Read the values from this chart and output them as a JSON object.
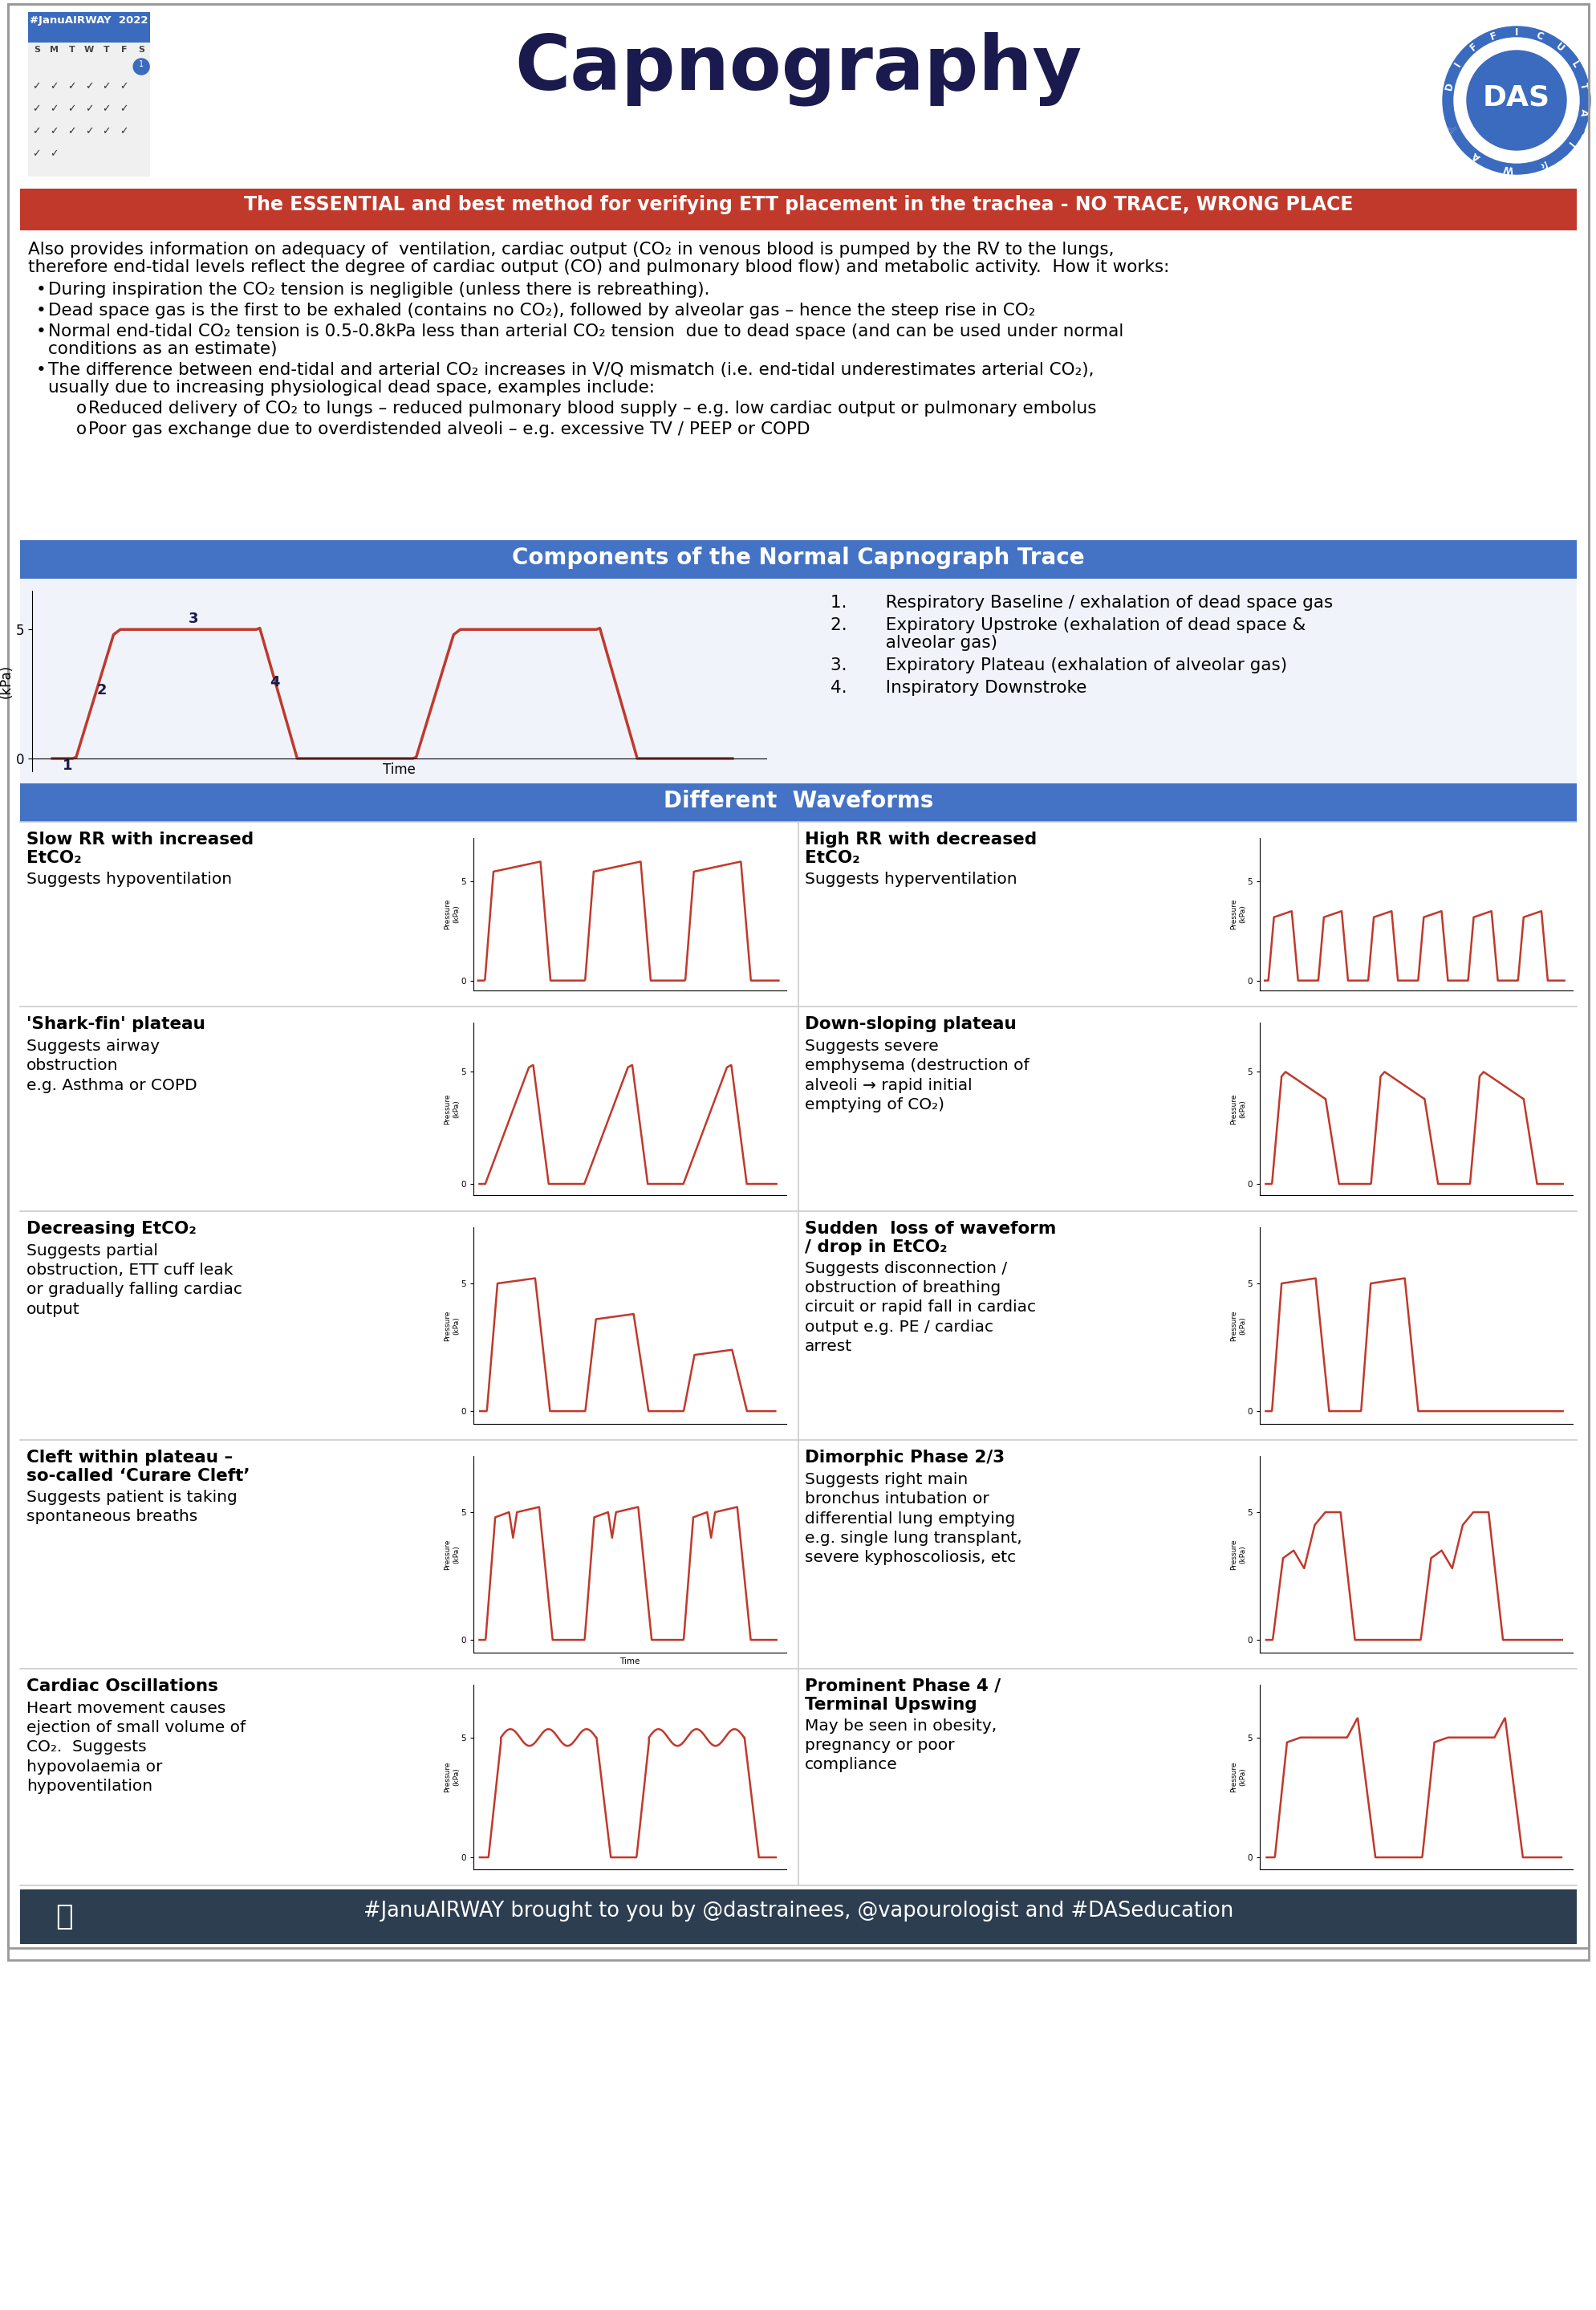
{
  "title": "Capnography",
  "title_color": "#1a1a4e",
  "title_fontsize": 68,
  "bg_color": "#ffffff",
  "red_banner_text": "The ESSENTIAL and best method for verifying ETT placement in the trachea - NO TRACE, WRONG PLACE",
  "red_banner_color": "#c0392b",
  "blue_banner_color": "#4472c4",
  "dark_blue": "#1a1a4e",
  "intro_line1": "Also provides information on adequacy of  ventilation, cardiac output (CO₂ in venous blood is pumped by the RV to the lungs,",
  "intro_line2": "therefore end-tidal levels reflect the degree of cardiac output (CO) and pulmonary blood flow) and metabolic activity.  How it works:",
  "bullet1": "During inspiration the CO₂ tension is negligible (unless there is rebreathing).",
  "bullet2": "Dead space gas is the first to be exhaled (contains no CO₂), followed by alveolar gas – hence the steep rise in CO₂",
  "bullet3a": "Normal end-tidal CO₂ tension is 0.5-0.8kPa less than arterial CO₂ tension  due to dead space (and can be used under normal",
  "bullet3b": "conditions as an estimate)",
  "bullet4a": "The difference between end-tidal and arterial CO₂ increases in V/Q mismatch (i.e. end-tidal underestimates arterial CO₂),",
  "bullet4b": "usually due to increasing physiological dead space, examples include:",
  "sub_bullet1": "Reduced delivery of CO₂ to lungs – reduced pulmonary blood supply – e.g. low cardiac output or pulmonary embolus",
  "sub_bullet2": "Poor gas exchange due to overdistended alveoli – e.g. excessive TV / PEEP or COPD",
  "section1_title": "Components of the Normal Capnograph Trace",
  "section2_title": "Different  Waveforms",
  "components_list": [
    "1.       Respiratory Baseline / exhalation of dead space gas",
    "2.       Expiratory Upstroke (exhalation of dead space &",
    "          alveolar gas)",
    "3.       Expiratory Plateau (exhalation of alveolar gas)",
    "4.       Inspiratory Downstroke"
  ],
  "waveform_rows": [
    {
      "left_title": "Slow RR with increased\nEtCO₂",
      "left_desc": "Suggests hypoventilation",
      "left_type": "slow_rr",
      "right_title": "High RR with decreased\nEtCO₂",
      "right_desc": "Suggests hyperventilation",
      "right_type": "high_rr"
    },
    {
      "left_title": "'Shark-fin' plateau",
      "left_desc": "Suggests airway\nobstruction\ne.g. Asthma or COPD",
      "left_type": "shark_fin",
      "right_title": "Down-sloping plateau",
      "right_desc": "Suggests severe\nemphysema (destruction of\nalveoli → rapid initial\nemptying of CO₂)",
      "right_type": "down_slope"
    },
    {
      "left_title": "Decreasing EtCO₂",
      "left_desc": "Suggests partial\nobstruction, ETT cuff leak\nor gradually falling cardiac\noutput",
      "left_type": "decreasing",
      "right_title": "Sudden  loss of waveform\n/ drop in EtCO₂",
      "right_desc": "Suggests disconnection /\nobstruction of breathing\ncircuit or rapid fall in cardiac\noutput e.g. PE / cardiac\narrest",
      "right_type": "sudden_loss"
    },
    {
      "left_title": "Cleft within plateau –\nso-called ‘Curare Cleft’",
      "left_desc": "Suggests patient is taking\nspontaneous breaths",
      "left_type": "curare_cleft",
      "right_title": "Dimorphic Phase 2/3",
      "right_desc": "Suggests right main\nbronchus intubation or\ndifferential lung emptying\ne.g. single lung transplant,\nsevere kyphoscoliosis, etc",
      "right_type": "dimorphic"
    },
    {
      "left_title": "Cardiac Oscillations",
      "left_desc": "Heart movement causes\nejection of small volume of\nCO₂.  Suggests\nhypovolaemia or\nhypoventilation",
      "left_type": "cardiac_osc",
      "right_title": "Prominent Phase 4 /\nTerminal Upswing",
      "right_desc": "May be seen in obesity,\npregnancy or poor\ncompliance",
      "right_type": "terminal_upswing"
    }
  ],
  "footer_text": "#JanuAIRWAY brought to you by @dastrainees, @vapourologist and #DASeducation",
  "footer_bg": "#2c3e50",
  "waveform_color": "#c0392b",
  "light_blue_bg": "#dce6f1"
}
